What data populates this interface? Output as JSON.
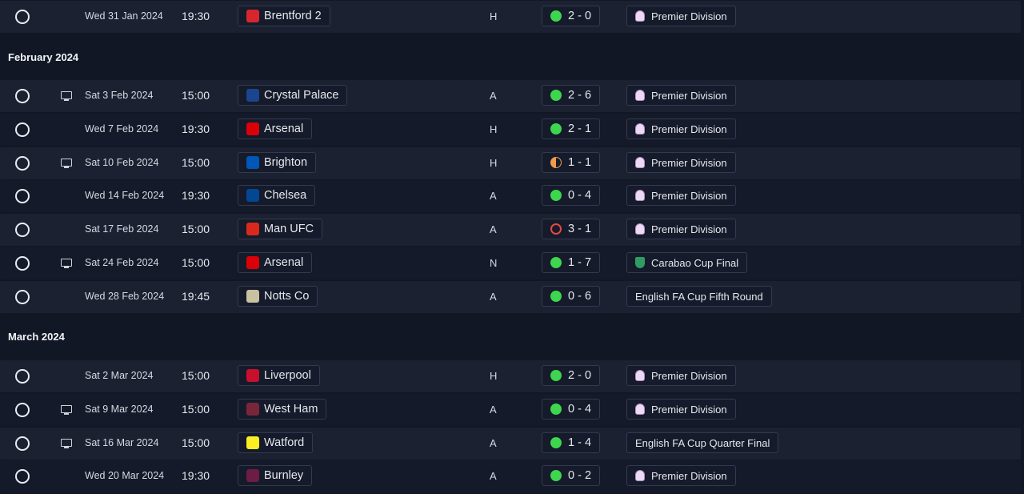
{
  "sections": [
    {
      "month": "",
      "fixtures": [
        {
          "date": "Wed 31 Jan 2024",
          "time": "19:30",
          "tv": false,
          "opponent": "Brentford 2",
          "crest_color": "#d8262e",
          "crest_icon": "brentford-crest-icon",
          "venue": "H",
          "score": "2 - 0",
          "result": "win",
          "competition": "Premier Division",
          "comp_icon": "premier-division-icon"
        }
      ]
    },
    {
      "month": "February 2024",
      "fixtures": [
        {
          "date": "Sat 3 Feb 2024",
          "time": "15:00",
          "tv": true,
          "opponent": "Crystal Palace",
          "crest_color": "#1b458f",
          "crest_icon": "crystal-palace-crest-icon",
          "venue": "A",
          "score": "2 - 6",
          "result": "win",
          "competition": "Premier Division",
          "comp_icon": "premier-division-icon"
        },
        {
          "date": "Wed 7 Feb 2024",
          "time": "19:30",
          "tv": false,
          "opponent": "Arsenal",
          "crest_color": "#db0007",
          "crest_icon": "arsenal-crest-icon",
          "venue": "H",
          "score": "2 - 1",
          "result": "win",
          "competition": "Premier Division",
          "comp_icon": "premier-division-icon"
        },
        {
          "date": "Sat 10 Feb 2024",
          "time": "15:00",
          "tv": true,
          "opponent": "Brighton",
          "crest_color": "#0057b8",
          "crest_icon": "brighton-crest-icon",
          "venue": "H",
          "score": "1 - 1",
          "result": "draw",
          "competition": "Premier Division",
          "comp_icon": "premier-division-icon"
        },
        {
          "date": "Wed 14 Feb 2024",
          "time": "19:30",
          "tv": false,
          "opponent": "Chelsea",
          "crest_color": "#034694",
          "crest_icon": "chelsea-crest-icon",
          "venue": "A",
          "score": "0 - 4",
          "result": "win",
          "competition": "Premier Division",
          "comp_icon": "premier-division-icon"
        },
        {
          "date": "Sat 17 Feb 2024",
          "time": "15:00",
          "tv": false,
          "opponent": "Man UFC",
          "crest_color": "#da291c",
          "crest_icon": "man-ufc-crest-icon",
          "venue": "A",
          "score": "3 - 1",
          "result": "loss",
          "competition": "Premier Division",
          "comp_icon": "premier-division-icon"
        },
        {
          "date": "Sat 24 Feb 2024",
          "time": "15:00",
          "tv": true,
          "opponent": "Arsenal",
          "crest_color": "#db0007",
          "crest_icon": "arsenal-crest-icon",
          "venue": "N",
          "score": "1 - 7",
          "result": "win",
          "competition": "Carabao Cup Final",
          "comp_icon": "carabao-cup-icon"
        },
        {
          "date": "Wed 28 Feb 2024",
          "time": "19:45",
          "tv": false,
          "opponent": "Notts Co",
          "crest_color": "#c9c2a0",
          "crest_icon": "notts-co-crest-icon",
          "venue": "A",
          "score": "0 - 6",
          "result": "win",
          "competition": "English FA Cup Fifth Round",
          "comp_icon": ""
        }
      ]
    },
    {
      "month": "March 2024",
      "fixtures": [
        {
          "date": "Sat 2 Mar 2024",
          "time": "15:00",
          "tv": false,
          "opponent": "Liverpool",
          "crest_color": "#c8102e",
          "crest_icon": "liverpool-crest-icon",
          "venue": "H",
          "score": "2 - 0",
          "result": "win",
          "competition": "Premier Division",
          "comp_icon": "premier-division-icon"
        },
        {
          "date": "Sat 9 Mar 2024",
          "time": "15:00",
          "tv": true,
          "opponent": "West Ham",
          "crest_color": "#7a263a",
          "crest_icon": "west-ham-crest-icon",
          "venue": "A",
          "score": "0 - 4",
          "result": "win",
          "competition": "Premier Division",
          "comp_icon": "premier-division-icon"
        },
        {
          "date": "Sat 16 Mar 2024",
          "time": "15:00",
          "tv": true,
          "opponent": "Watford",
          "crest_color": "#fbee23",
          "crest_icon": "watford-crest-icon",
          "venue": "A",
          "score": "1 - 4",
          "result": "win",
          "competition": "English FA Cup Quarter Final",
          "comp_icon": ""
        },
        {
          "date": "Wed 20 Mar 2024",
          "time": "19:30",
          "tv": false,
          "opponent": "Burnley",
          "crest_color": "#6c1d45",
          "crest_icon": "burnley-crest-icon",
          "venue": "A",
          "score": "0 - 2",
          "result": "win",
          "competition": "Premier Division",
          "comp_icon": "premier-division-icon"
        }
      ]
    }
  ]
}
